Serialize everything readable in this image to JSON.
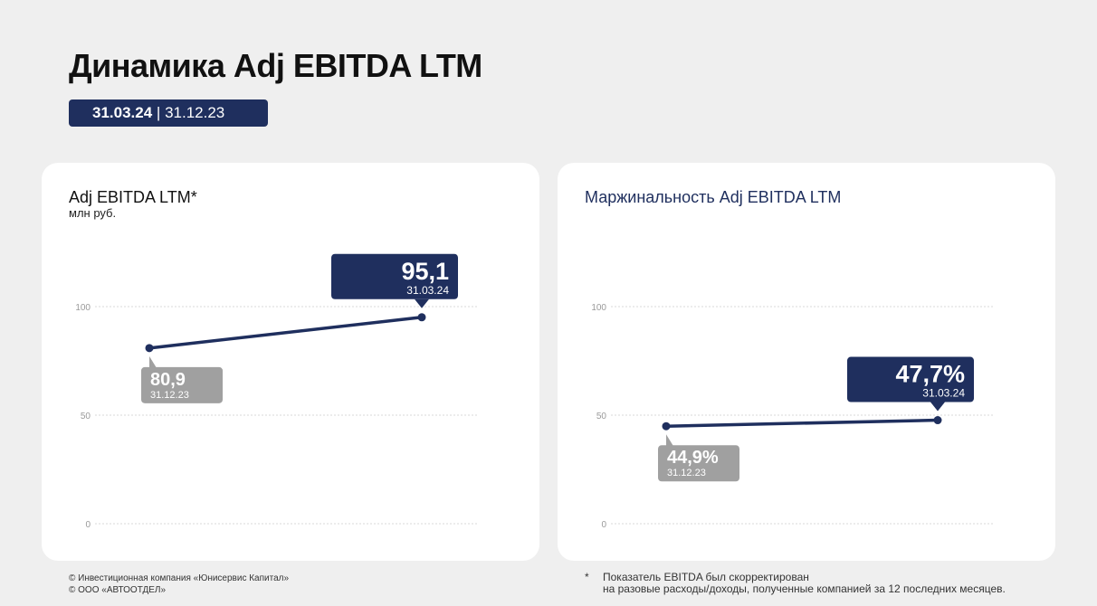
{
  "header": {
    "title": "Динамика Adj EBITDA LTM",
    "period_current": "31.03.24",
    "period_separator": " | ",
    "period_previous": "31.12.23"
  },
  "colors": {
    "primary": "#1f2f5e",
    "secondary": "#a0a0a0",
    "grid": "#d8d8d8",
    "axis_text": "#9a9a9a"
  },
  "chart_data": [
    {
      "type": "line",
      "title": "Adj EBITDA LTM*",
      "unit": "млн руб.",
      "categories": [
        "31.12.23",
        "31.03.24"
      ],
      "values": [
        80.9,
        95.1
      ],
      "value_labels": [
        "80,9",
        "95,1"
      ],
      "ylim": [
        0,
        110
      ],
      "yticks": [
        0,
        50,
        100
      ],
      "ytick_labels": [
        "0",
        "50",
        "100"
      ],
      "grid": true
    },
    {
      "type": "line",
      "title": "Маржинальность Adj EBITDA LTM",
      "unit": "",
      "categories": [
        "31.12.23",
        "31.03.24"
      ],
      "values": [
        44.9,
        47.7
      ],
      "value_labels": [
        "44,9%",
        "47,7%"
      ],
      "ylim": [
        0,
        110
      ],
      "yticks": [
        0,
        50,
        100
      ],
      "ytick_labels": [
        "0",
        "50",
        "100"
      ],
      "grid": true
    }
  ],
  "footer": {
    "copyright_1": "© Инвестиционная компания «Юнисервис Капитал»",
    "copyright_2": "© ООО «АВТООТДЕЛ»",
    "note_marker": "*",
    "note_line1": "Показатель EBITDA был скорректирован",
    "note_line2": "на разовые расходы/доходы, полученные компанией за 12 последних месяцев."
  }
}
